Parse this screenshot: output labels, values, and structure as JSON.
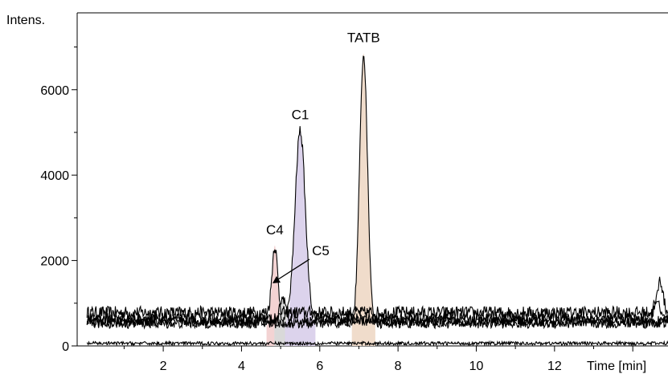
{
  "chart_data": {
    "type": "line",
    "ylabel": "Intens.",
    "xlabel": "Time [min]",
    "xlim": [
      -0.2,
      14.9
    ],
    "ylim": [
      0,
      7800
    ],
    "x_ticks": [
      2,
      4,
      6,
      8,
      10,
      12
    ],
    "y_ticks": [
      0,
      2000,
      4000,
      6000
    ],
    "grid": false,
    "peaks": [
      {
        "label": "C4",
        "rt": 4.85,
        "height": 2350,
        "fill": "#f3d3d3"
      },
      {
        "label": "C5",
        "rt": 5.05,
        "height": 1150,
        "fill": "#d9d9d9"
      },
      {
        "label": "C1",
        "rt": 5.5,
        "height": 5050,
        "fill": "#dcd3ec"
      },
      {
        "label": "TATB",
        "rt": 7.12,
        "height": 6850,
        "fill": "#f0dccb"
      }
    ],
    "series": [
      {
        "baseline": 780,
        "noise": 150,
        "peaks": [
          {
            "rt": 4.85,
            "height": 2350,
            "width": 0.07
          },
          {
            "rt": 14.7,
            "height": 1540,
            "width": 0.07
          }
        ]
      },
      {
        "baseline": 640,
        "noise": 130,
        "peaks": [
          {
            "rt": 5.5,
            "height": 5050,
            "width": 0.13
          },
          {
            "rt": 14.6,
            "height": 1100,
            "width": 0.07
          }
        ]
      },
      {
        "baseline": 520,
        "noise": 110,
        "peaks": [
          {
            "rt": 7.12,
            "height": 6850,
            "width": 0.1
          }
        ]
      },
      {
        "baseline": 580,
        "noise": 120,
        "peaks": [
          {
            "rt": 5.05,
            "height": 1150,
            "width": 0.07
          }
        ]
      },
      {
        "baseline": 60,
        "noise": 40,
        "peaks": []
      }
    ]
  }
}
